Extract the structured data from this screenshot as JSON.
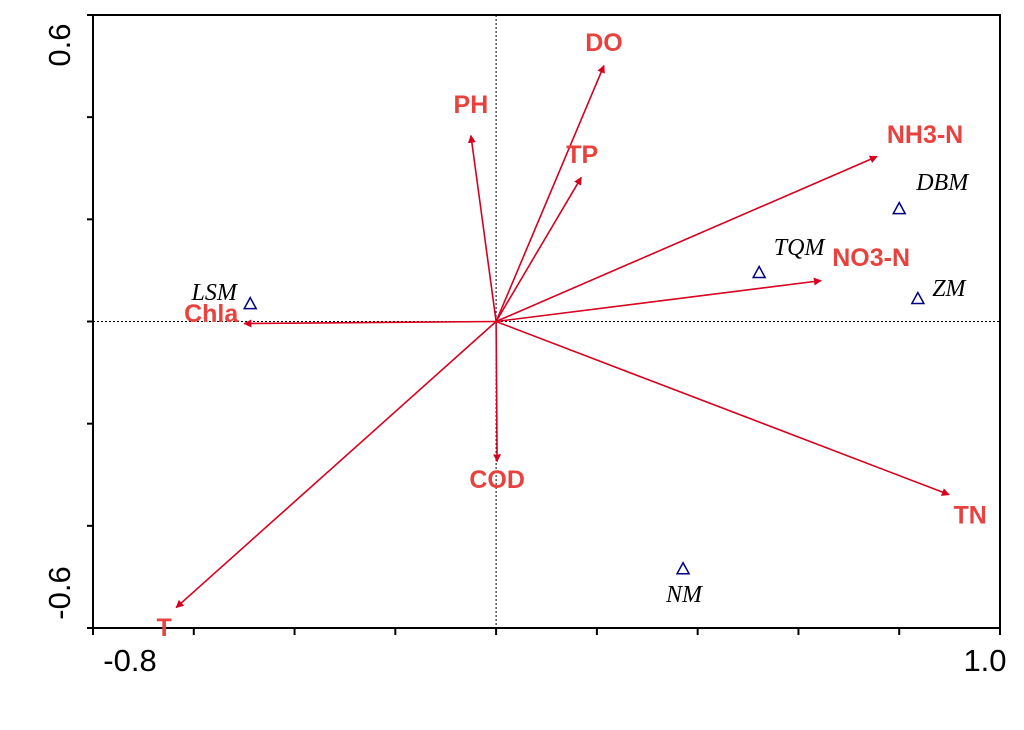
{
  "chart_data": {
    "type": "biplot",
    "xlim": [
      -0.8,
      1.0
    ],
    "ylim": [
      -0.6,
      0.6
    ],
    "xticks": [
      -0.8,
      {
        "value": 1.0,
        "label": "1.0"
      }
    ],
    "yticks": [
      -0.6,
      0.6
    ],
    "xminor_ticks": [
      -0.6,
      -0.4,
      -0.2,
      0,
      0.2,
      0.4,
      0.6,
      0.8
    ],
    "yminor_ticks": [
      -0.4,
      -0.2,
      0,
      0.2,
      0.4
    ],
    "arrow_color": "#d7001f",
    "label_color": "#e8423f",
    "point_color": "#000080",
    "arrows": {
      "names": [
        "DO",
        "PH",
        "TP",
        "NH3-N",
        "NO3-N",
        "Chla",
        "COD",
        "TN",
        "T"
      ],
      "x": [
        0.214,
        -0.05,
        0.169,
        0.756,
        0.645,
        -0.5,
        0.002,
        0.899,
        -0.635
      ],
      "y": [
        0.501,
        0.364,
        0.282,
        0.323,
        0.08,
        -0.004,
        -0.274,
        -0.339,
        -0.56
      ]
    },
    "points": {
      "names": [
        "LSM",
        "DBM",
        "TQM",
        "ZM",
        "NM"
      ],
      "x": [
        -0.488,
        0.8,
        0.522,
        0.837,
        0.371
      ],
      "y": [
        0.035,
        0.221,
        0.096,
        0.045,
        -0.484
      ]
    }
  }
}
